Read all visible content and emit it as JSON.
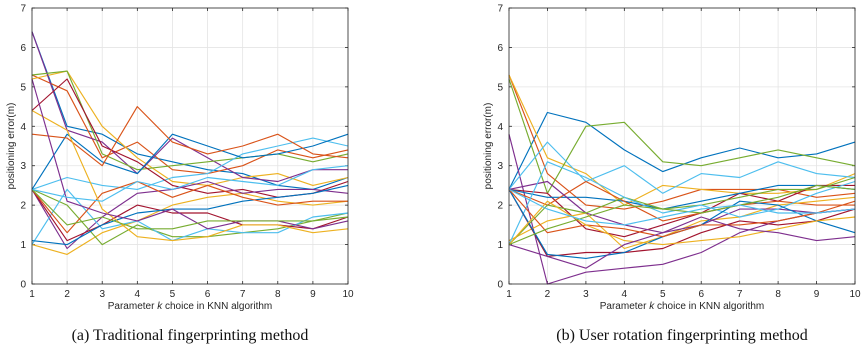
{
  "chart_data": [
    {
      "type": "line",
      "caption": "(a) Traditional fingerprinting method",
      "xlabel_parts": [
        "Parameter ",
        "k",
        " choice in KNN algorithm"
      ],
      "ylabel": "positioning error(m)",
      "x": [
        1,
        2,
        3,
        4,
        5,
        6,
        7,
        8,
        9,
        10
      ],
      "xlim": [
        1,
        10
      ],
      "ylim": [
        0,
        7
      ],
      "xticks": [
        1,
        2,
        3,
        4,
        5,
        6,
        7,
        8,
        9,
        10
      ],
      "yticks": [
        0,
        1,
        2,
        3,
        4,
        5,
        6,
        7
      ],
      "grid": true,
      "series": [
        {
          "color": "#0072BD",
          "values": [
            6.4,
            4.0,
            3.8,
            3.3,
            3.1,
            2.9,
            2.8,
            2.5,
            2.4,
            2.7
          ]
        },
        {
          "color": "#D95319",
          "values": [
            5.3,
            4.9,
            3.2,
            3.6,
            2.9,
            2.8,
            3.0,
            3.4,
            3.2,
            3.4
          ]
        },
        {
          "color": "#EDB120",
          "values": [
            5.2,
            5.4,
            4.0,
            3.2,
            2.6,
            2.5,
            2.7,
            2.8,
            2.5,
            2.7
          ]
        },
        {
          "color": "#7E2F8E",
          "values": [
            6.4,
            3.9,
            3.6,
            2.8,
            3.7,
            3.2,
            2.7,
            2.6,
            2.9,
            2.9
          ]
        },
        {
          "color": "#77AC30",
          "values": [
            5.3,
            5.4,
            3.3,
            2.9,
            3.0,
            3.1,
            3.2,
            3.3,
            3.1,
            3.3
          ]
        },
        {
          "color": "#4DBEEE",
          "values": [
            2.4,
            2.7,
            2.5,
            2.4,
            2.7,
            2.8,
            3.3,
            3.5,
            3.7,
            3.5
          ]
        },
        {
          "color": "#A2142F",
          "values": [
            4.4,
            5.2,
            3.5,
            3.1,
            2.5,
            2.3,
            2.4,
            2.2,
            2.3,
            2.6
          ]
        },
        {
          "color": "#0072BD",
          "values": [
            2.4,
            3.8,
            3.1,
            2.8,
            3.8,
            3.5,
            3.2,
            3.3,
            3.5,
            3.8
          ]
        },
        {
          "color": "#D95319",
          "values": [
            3.8,
            3.7,
            3.0,
            4.5,
            3.6,
            3.3,
            3.5,
            3.8,
            3.3,
            3.2
          ]
        },
        {
          "color": "#EDB120",
          "values": [
            1.0,
            0.75,
            1.3,
            1.6,
            2.0,
            2.2,
            2.3,
            2.1,
            2.0,
            2.1
          ]
        },
        {
          "color": "#7E2F8E",
          "values": [
            2.4,
            0.9,
            1.7,
            2.3,
            2.4,
            2.6,
            2.3,
            2.4,
            2.4,
            2.3
          ]
        },
        {
          "color": "#77AC30",
          "values": [
            2.4,
            2.0,
            1.0,
            1.5,
            1.2,
            1.2,
            1.3,
            1.4,
            1.6,
            1.8
          ]
        },
        {
          "color": "#4DBEEE",
          "values": [
            1.0,
            2.4,
            1.4,
            1.6,
            1.1,
            1.4,
            1.3,
            1.3,
            1.7,
            1.8
          ]
        },
        {
          "color": "#A2142F",
          "values": [
            2.4,
            1.1,
            1.5,
            2.0,
            1.8,
            1.8,
            1.5,
            1.5,
            1.4,
            1.7
          ]
        },
        {
          "color": "#0072BD",
          "values": [
            1.1,
            1.0,
            1.5,
            1.8,
            1.9,
            1.9,
            2.1,
            2.2,
            2.3,
            2.5
          ]
        },
        {
          "color": "#D95319",
          "values": [
            2.4,
            1.3,
            2.3,
            2.6,
            2.2,
            2.5,
            2.2,
            2.0,
            2.1,
            2.1
          ]
        },
        {
          "color": "#EDB120",
          "values": [
            4.4,
            3.9,
            1.9,
            1.2,
            1.1,
            1.2,
            1.5,
            1.5,
            1.3,
            1.4
          ]
        },
        {
          "color": "#7E2F8E",
          "values": [
            5.2,
            2.1,
            1.8,
            1.6,
            1.9,
            1.4,
            1.6,
            1.6,
            1.4,
            1.6
          ]
        },
        {
          "color": "#77AC30",
          "values": [
            2.4,
            1.5,
            1.7,
            1.4,
            1.4,
            1.6,
            1.6,
            1.6,
            1.6,
            1.7
          ]
        },
        {
          "color": "#4DBEEE",
          "values": [
            2.4,
            2.2,
            2.1,
            2.6,
            2.4,
            2.7,
            2.6,
            2.5,
            2.9,
            3.0
          ]
        }
      ]
    },
    {
      "type": "line",
      "caption": "(b) User rotation fingerprinting method",
      "xlabel_parts": [
        "Parameter ",
        "k",
        " choice in KNN algorithm"
      ],
      "ylabel": "positioning error(m)",
      "x": [
        1,
        2,
        3,
        4,
        5,
        6,
        7,
        8,
        9,
        10
      ],
      "xlim": [
        1,
        10
      ],
      "ylim": [
        0,
        7
      ],
      "xticks": [
        1,
        2,
        3,
        4,
        5,
        6,
        7,
        8,
        9,
        10
      ],
      "yticks": [
        0,
        1,
        2,
        3,
        4,
        5,
        6,
        7
      ],
      "grid": true,
      "series": [
        {
          "color": "#0072BD",
          "values": [
            2.4,
            4.35,
            4.1,
            3.4,
            2.85,
            3.2,
            3.45,
            3.2,
            3.3,
            3.6
          ]
        },
        {
          "color": "#D95319",
          "values": [
            5.3,
            2.8,
            2.0,
            1.9,
            2.1,
            2.4,
            2.4,
            2.4,
            2.2,
            2.3
          ]
        },
        {
          "color": "#EDB120",
          "values": [
            5.3,
            3.2,
            2.8,
            2.0,
            2.5,
            2.4,
            2.3,
            2.3,
            2.4,
            2.8
          ]
        },
        {
          "color": "#7E2F8E",
          "values": [
            3.8,
            0.0,
            0.3,
            0.4,
            0.5,
            0.8,
            1.3,
            1.6,
            1.8,
            1.9
          ]
        },
        {
          "color": "#77AC30",
          "values": [
            5.2,
            2.3,
            4.0,
            4.1,
            3.1,
            3.0,
            3.2,
            3.4,
            3.2,
            3.0
          ]
        },
        {
          "color": "#4DBEEE",
          "values": [
            2.4,
            3.6,
            2.6,
            3.0,
            2.3,
            2.8,
            2.7,
            3.1,
            2.8,
            2.7
          ]
        },
        {
          "color": "#A2142F",
          "values": [
            2.4,
            2.3,
            1.4,
            1.2,
            1.5,
            1.8,
            2.3,
            2.1,
            2.5,
            2.5
          ]
        },
        {
          "color": "#0072BD",
          "values": [
            2.4,
            2.2,
            2.2,
            2.1,
            1.9,
            2.1,
            2.3,
            2.5,
            2.5,
            2.4
          ]
        },
        {
          "color": "#D95319",
          "values": [
            2.4,
            2.0,
            2.6,
            2.1,
            1.6,
            1.8,
            2.0,
            2.1,
            2.0,
            2.0
          ]
        },
        {
          "color": "#EDB120",
          "values": [
            1.1,
            1.6,
            1.8,
            0.9,
            1.2,
            1.6,
            1.7,
            2.0,
            2.1,
            2.2
          ]
        },
        {
          "color": "#7E2F8E",
          "values": [
            2.4,
            2.6,
            1.8,
            1.5,
            1.3,
            1.5,
            1.9,
            1.9,
            1.8,
            1.9
          ]
        },
        {
          "color": "#77AC30",
          "values": [
            1.0,
            2.0,
            1.8,
            2.2,
            1.9,
            2.0,
            2.2,
            2.4,
            2.4,
            2.7
          ]
        },
        {
          "color": "#4DBEEE",
          "values": [
            1.0,
            3.1,
            2.7,
            2.2,
            1.8,
            2.0,
            1.7,
            1.9,
            2.3,
            2.6
          ]
        },
        {
          "color": "#A2142F",
          "values": [
            2.4,
            0.7,
            0.8,
            0.8,
            0.9,
            1.3,
            1.6,
            1.5,
            1.6,
            1.9
          ]
        },
        {
          "color": "#0072BD",
          "values": [
            2.4,
            0.75,
            0.65,
            0.8,
            1.2,
            1.5,
            2.1,
            2.0,
            1.6,
            1.3
          ]
        },
        {
          "color": "#D95319",
          "values": [
            2.4,
            1.3,
            1.5,
            1.4,
            1.2,
            1.5,
            1.5,
            1.6,
            1.8,
            2.1
          ]
        },
        {
          "color": "#EDB120",
          "values": [
            1.0,
            2.1,
            1.5,
            1.1,
            1.0,
            1.1,
            1.2,
            1.4,
            1.6,
            1.7
          ]
        },
        {
          "color": "#7E2F8E",
          "values": [
            1.0,
            0.7,
            0.4,
            1.0,
            1.3,
            1.7,
            1.4,
            1.3,
            1.1,
            1.2
          ]
        },
        {
          "color": "#77AC30",
          "values": [
            1.0,
            1.4,
            1.7,
            2.0,
            1.9,
            1.8,
            2.0,
            2.2,
            2.5,
            2.4
          ]
        },
        {
          "color": "#4DBEEE",
          "values": [
            2.4,
            1.9,
            1.6,
            1.5,
            1.7,
            1.9,
            2.0,
            1.8,
            1.8,
            1.9
          ]
        }
      ]
    }
  ]
}
